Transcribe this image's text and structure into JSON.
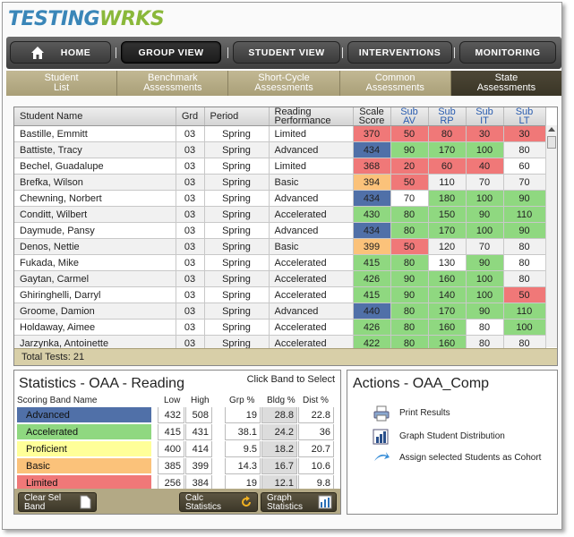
{
  "logo": {
    "part1": "TESTING",
    "part2": "W",
    "part3": "RKS"
  },
  "nav": {
    "home": "HOME",
    "group_view": "GROUP VIEW",
    "student_view": "STUDENT VIEW",
    "interventions": "INTERVENTIONS",
    "monitoring": "MONITORING"
  },
  "subtabs": [
    {
      "line1": "Student",
      "line2": "List"
    },
    {
      "line1": "Benchmark",
      "line2": "Assessments"
    },
    {
      "line1": "Short-Cycle",
      "line2": "Assessments"
    },
    {
      "line1": "Common",
      "line2": "Assessments"
    },
    {
      "line1": "State",
      "line2": "Assessments"
    }
  ],
  "table": {
    "headers": {
      "name": "Student Name",
      "grd": "Grd",
      "period": "Period",
      "perf1": "Reading",
      "perf2": "Performance",
      "scale1": "Scale",
      "scale2": "Score",
      "av1": "Sub",
      "av2": "AV",
      "rp1": "Sub",
      "rp2": "RP",
      "it1": "Sub",
      "it2": "IT",
      "lt1": "Sub",
      "lt2": "LT"
    },
    "rows": [
      {
        "name": "Bastille, Emmitt",
        "grd": "03",
        "period": "Spring",
        "perf": "Limited",
        "score": "370",
        "av": "50",
        "rp": "80",
        "it": "30",
        "lt": "30"
      },
      {
        "name": "Battiste, Tracy",
        "grd": "03",
        "period": "Spring",
        "perf": "Advanced",
        "score": "434",
        "av": "90",
        "rp": "170",
        "it": "100",
        "lt": "80"
      },
      {
        "name": "Bechel, Guadalupe",
        "grd": "03",
        "period": "Spring",
        "perf": "Limited",
        "score": "368",
        "av": "20",
        "rp": "60",
        "it": "40",
        "lt": "60"
      },
      {
        "name": "Brefka, Wilson",
        "grd": "03",
        "period": "Spring",
        "perf": "Basic",
        "score": "394",
        "av": "50",
        "rp": "110",
        "it": "70",
        "lt": "70"
      },
      {
        "name": "Chewning, Norbert",
        "grd": "03",
        "period": "Spring",
        "perf": "Advanced",
        "score": "434",
        "av": "70",
        "rp": "180",
        "it": "100",
        "lt": "90"
      },
      {
        "name": "Conditt, Wilbert",
        "grd": "03",
        "period": "Spring",
        "perf": "Accelerated",
        "score": "430",
        "av": "80",
        "rp": "150",
        "it": "90",
        "lt": "110"
      },
      {
        "name": "Daymude, Pansy",
        "grd": "03",
        "period": "Spring",
        "perf": "Advanced",
        "score": "434",
        "av": "80",
        "rp": "170",
        "it": "100",
        "lt": "90"
      },
      {
        "name": "Denos, Nettie",
        "grd": "03",
        "period": "Spring",
        "perf": "Basic",
        "score": "399",
        "av": "50",
        "rp": "120",
        "it": "70",
        "lt": "80"
      },
      {
        "name": "Fukada, Mike",
        "grd": "03",
        "period": "Spring",
        "perf": "Accelerated",
        "score": "415",
        "av": "80",
        "rp": "130",
        "it": "90",
        "lt": "80"
      },
      {
        "name": "Gaytan, Carmel",
        "grd": "03",
        "period": "Spring",
        "perf": "Accelerated",
        "score": "426",
        "av": "90",
        "rp": "160",
        "it": "100",
        "lt": "80"
      },
      {
        "name": "Ghiringhelli, Darryl",
        "grd": "03",
        "period": "Spring",
        "perf": "Accelerated",
        "score": "415",
        "av": "90",
        "rp": "140",
        "it": "100",
        "lt": "50"
      },
      {
        "name": "Groome, Damion",
        "grd": "03",
        "period": "Spring",
        "perf": "Advanced",
        "score": "440",
        "av": "80",
        "rp": "170",
        "it": "90",
        "lt": "110"
      },
      {
        "name": "Holdaway, Aimee",
        "grd": "03",
        "period": "Spring",
        "perf": "Accelerated",
        "score": "426",
        "av": "80",
        "rp": "160",
        "it": "80",
        "lt": "100"
      },
      {
        "name": "Jarzynka, Antoinette",
        "grd": "03",
        "period": "Spring",
        "perf": "Accelerated",
        "score": "422",
        "av": "80",
        "rp": "160",
        "it": "80",
        "lt": "80"
      }
    ],
    "total": "Total Tests: 21"
  },
  "colors": {
    "Limited": "#f07878",
    "Basic": "#fbc27a",
    "Proficient": "#ffff99",
    "Accelerated": "#8fd880",
    "Advanced": "#5070a8",
    "none": "#ffffff"
  },
  "cell_bands": [
    {
      "score": "Limited",
      "av": "Limited",
      "rp": "Limited",
      "it": "Limited",
      "lt": "Limited"
    },
    {
      "score": "Advanced",
      "av": "Accelerated",
      "rp": "Accelerated",
      "it": "Accelerated",
      "lt": "none"
    },
    {
      "score": "Limited",
      "av": "Limited",
      "rp": "Limited",
      "it": "Limited",
      "lt": "none"
    },
    {
      "score": "Basic",
      "av": "Limited",
      "rp": "none",
      "it": "none",
      "lt": "none"
    },
    {
      "score": "Advanced",
      "av": "none",
      "rp": "Accelerated",
      "it": "Accelerated",
      "lt": "Accelerated"
    },
    {
      "score": "Accelerated",
      "av": "Accelerated",
      "rp": "Accelerated",
      "it": "Accelerated",
      "lt": "Accelerated"
    },
    {
      "score": "Advanced",
      "av": "Accelerated",
      "rp": "Accelerated",
      "it": "Accelerated",
      "lt": "Accelerated"
    },
    {
      "score": "Basic",
      "av": "Limited",
      "rp": "none",
      "it": "none",
      "lt": "none"
    },
    {
      "score": "Accelerated",
      "av": "Accelerated",
      "rp": "none",
      "it": "Accelerated",
      "lt": "none"
    },
    {
      "score": "Accelerated",
      "av": "Accelerated",
      "rp": "Accelerated",
      "it": "Accelerated",
      "lt": "none"
    },
    {
      "score": "Accelerated",
      "av": "Accelerated",
      "rp": "Accelerated",
      "it": "Accelerated",
      "lt": "Limited"
    },
    {
      "score": "Advanced",
      "av": "Accelerated",
      "rp": "Accelerated",
      "it": "Accelerated",
      "lt": "Accelerated"
    },
    {
      "score": "Accelerated",
      "av": "Accelerated",
      "rp": "Accelerated",
      "it": "none",
      "lt": "Accelerated"
    },
    {
      "score": "Accelerated",
      "av": "Accelerated",
      "rp": "Accelerated",
      "it": "none",
      "lt": "none"
    }
  ],
  "stats": {
    "title": "Statistics - OAA - Reading",
    "hint": "Click Band to Select",
    "headers": {
      "band": "Scoring Band Name",
      "low": "Low",
      "high": "High",
      "grp": "Grp %",
      "bldg": "Bldg %",
      "dist": "Dist %"
    },
    "bands": [
      {
        "name": "Advanced",
        "low": "432",
        "high": "508",
        "grp": "19",
        "bldg": "28.8",
        "dist": "22.8"
      },
      {
        "name": "Accelerated",
        "low": "415",
        "high": "431",
        "grp": "38.1",
        "bldg": "24.2",
        "dist": "36"
      },
      {
        "name": "Proficient",
        "low": "400",
        "high": "414",
        "grp": "9.5",
        "bldg": "18.2",
        "dist": "20.7"
      },
      {
        "name": "Basic",
        "low": "385",
        "high": "399",
        "grp": "14.3",
        "bldg": "16.7",
        "dist": "10.6"
      },
      {
        "name": "Limited",
        "low": "256",
        "high": "384",
        "grp": "19",
        "bldg": "12.1",
        "dist": "9.8"
      }
    ],
    "buttons": {
      "clear1": "Clear Sel",
      "clear2": "Band",
      "calc1": "Calc",
      "calc2": "Statistics",
      "graph1": "Graph",
      "graph2": "Statistics"
    }
  },
  "actions": {
    "title": "Actions - OAA_Comp",
    "print": "Print Results",
    "graph": "Graph Student Distribution",
    "assign": "Assign selected Students as Cohort"
  }
}
